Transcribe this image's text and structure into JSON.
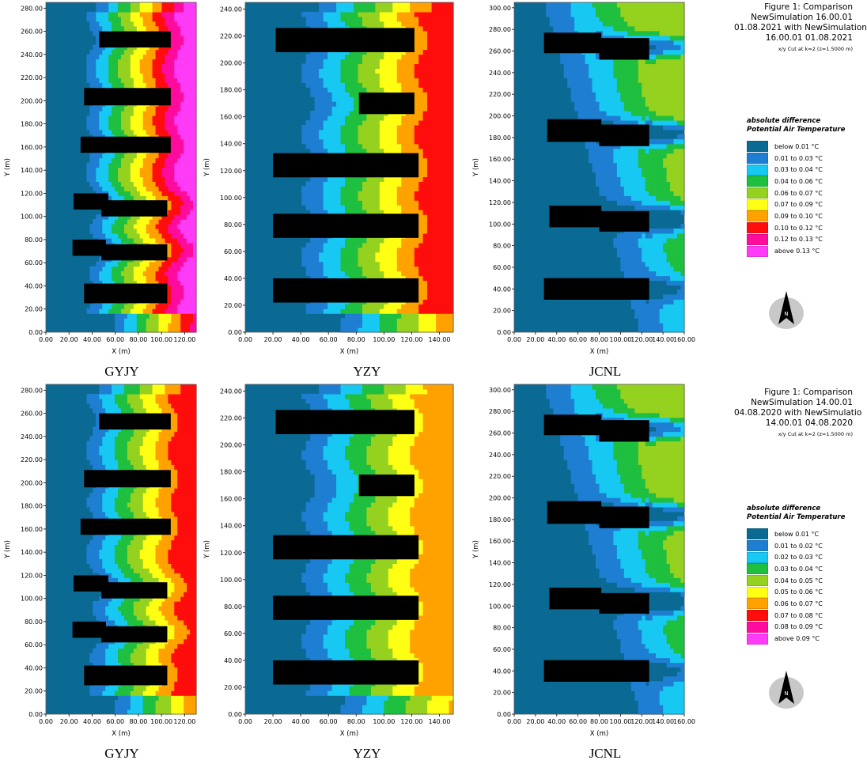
{
  "chart_data": [
    {
      "type": "heatmap",
      "site": "GYJY",
      "row": "top",
      "xlabel": "X (m)",
      "ylabel": "Y (m)",
      "xlim": [
        0,
        130
      ],
      "ylim": [
        0,
        285
      ],
      "xticks": [
        "0.00",
        "20.00",
        "40.00",
        "60.00",
        "80.00",
        "100.00",
        "120.00"
      ],
      "yticks": [
        "0.00",
        "20.00",
        "40.00",
        "60.00",
        "80.00",
        "100.00",
        "120.00",
        "140.00",
        "160.00",
        "180.00",
        "200.00",
        "220.00",
        "240.00",
        "260.00",
        "280.00"
      ],
      "buildings": [
        [
          46,
          246,
          108,
          260
        ],
        [
          33,
          196,
          108,
          211
        ],
        [
          30,
          155,
          108,
          169
        ],
        [
          24,
          106,
          54,
          120
        ],
        [
          48,
          100,
          105,
          114
        ],
        [
          23,
          66,
          52,
          80
        ],
        [
          48,
          62,
          105,
          76
        ],
        [
          33,
          25,
          105,
          42
        ]
      ],
      "hot_edge": "right",
      "peak_class": 9
    },
    {
      "type": "heatmap",
      "site": "YZY",
      "row": "top",
      "xlabel": "X (m)",
      "ylabel": "Y (m)",
      "xlim": [
        0,
        150
      ],
      "ylim": [
        0,
        245
      ],
      "xticks": [
        "0.00",
        "20.00",
        "40.00",
        "60.00",
        "80.00",
        "100.00",
        "120.00",
        "140.00"
      ],
      "yticks": [
        "0.00",
        "20.00",
        "40.00",
        "60.00",
        "80.00",
        "100.00",
        "120.00",
        "140.00",
        "160.00",
        "180.00",
        "200.00",
        "220.00",
        "240.00"
      ],
      "buildings": [
        [
          22,
          208,
          122,
          226
        ],
        [
          82,
          162,
          122,
          178
        ],
        [
          20,
          115,
          125,
          133
        ],
        [
          20,
          70,
          125,
          88
        ],
        [
          20,
          22,
          125,
          40
        ]
      ],
      "hot_edge": "right",
      "peak_class": 7
    },
    {
      "type": "heatmap",
      "site": "JCNL",
      "row": "top",
      "xlabel": "X (m)",
      "ylabel": "Y (m)",
      "xlim": [
        0,
        160
      ],
      "ylim": [
        0,
        305
      ],
      "xticks": [
        "0.00",
        "20.00",
        "40.00",
        "60.00",
        "80.00",
        "100.00",
        "120.00",
        "140.00",
        "160.00"
      ],
      "yticks": [
        "0.00",
        "20.00",
        "40.00",
        "60.00",
        "80.00",
        "100.00",
        "120.00",
        "140.00",
        "160.00",
        "180.00",
        "200.00",
        "220.00",
        "240.00",
        "260.00",
        "280.00",
        "300.00"
      ],
      "buildings": [
        [
          28,
          258,
          82,
          277
        ],
        [
          80,
          252,
          127,
          272
        ],
        [
          31,
          176,
          82,
          197
        ],
        [
          80,
          172,
          127,
          192
        ],
        [
          33,
          97,
          82,
          117
        ],
        [
          80,
          93,
          127,
          112
        ],
        [
          28,
          30,
          127,
          50
        ]
      ],
      "hot_edge": "top-right",
      "peak_class": 4
    },
    {
      "type": "heatmap",
      "site": "GYJY",
      "row": "bottom",
      "xlabel": "X (m)",
      "ylabel": "Y (m)",
      "xlim": [
        0,
        130
      ],
      "ylim": [
        0,
        285
      ],
      "xticks": [
        "0.00",
        "20.00",
        "40.00",
        "60.00",
        "80.00",
        "100.00",
        "120.00"
      ],
      "yticks": [
        "0.00",
        "20.00",
        "40.00",
        "60.00",
        "80.00",
        "100.00",
        "120.00",
        "140.00",
        "160.00",
        "180.00",
        "200.00",
        "220.00",
        "240.00",
        "260.00",
        "280.00"
      ],
      "buildings": [
        [
          46,
          246,
          108,
          260
        ],
        [
          33,
          196,
          108,
          211
        ],
        [
          30,
          155,
          108,
          169
        ],
        [
          24,
          106,
          54,
          120
        ],
        [
          48,
          100,
          105,
          114
        ],
        [
          23,
          66,
          52,
          80
        ],
        [
          48,
          62,
          105,
          76
        ],
        [
          33,
          25,
          105,
          42
        ]
      ],
      "hot_edge": "right",
      "peak_class": 7
    },
    {
      "type": "heatmap",
      "site": "YZY",
      "row": "bottom",
      "xlabel": "X (m)",
      "ylabel": "Y (m)",
      "xlim": [
        0,
        150
      ],
      "ylim": [
        0,
        245
      ],
      "xticks": [
        "0.00",
        "20.00",
        "40.00",
        "60.00",
        "80.00",
        "100.00",
        "120.00",
        "140.00"
      ],
      "yticks": [
        "0.00",
        "20.00",
        "40.00",
        "60.00",
        "80.00",
        "100.00",
        "120.00",
        "140.00",
        "160.00",
        "180.00",
        "200.00",
        "220.00",
        "240.00"
      ],
      "buildings": [
        [
          22,
          208,
          122,
          226
        ],
        [
          82,
          162,
          122,
          178
        ],
        [
          20,
          115,
          125,
          133
        ],
        [
          20,
          70,
          125,
          88
        ],
        [
          20,
          22,
          125,
          40
        ]
      ],
      "hot_edge": "right",
      "peak_class": 6
    },
    {
      "type": "heatmap",
      "site": "JCNL",
      "row": "bottom",
      "xlabel": "X (m)",
      "ylabel": "Y (m)",
      "xlim": [
        0,
        160
      ],
      "ylim": [
        0,
        305
      ],
      "xticks": [
        "0.00",
        "20.00",
        "40.00",
        "60.00",
        "80.00",
        "100.00",
        "120.00",
        "140.00",
        "160.00"
      ],
      "yticks": [
        "0.00",
        "20.00",
        "40.00",
        "60.00",
        "80.00",
        "100.00",
        "120.00",
        "140.00",
        "160.00",
        "180.00",
        "200.00",
        "220.00",
        "240.00",
        "260.00",
        "280.00",
        "300.00"
      ],
      "buildings": [
        [
          28,
          258,
          82,
          277
        ],
        [
          80,
          252,
          127,
          272
        ],
        [
          31,
          176,
          82,
          197
        ],
        [
          80,
          172,
          127,
          192
        ],
        [
          33,
          97,
          82,
          117
        ],
        [
          80,
          93,
          127,
          112
        ],
        [
          28,
          30,
          127,
          50
        ]
      ],
      "hot_edge": "top-right",
      "peak_class": 4
    }
  ],
  "legends": [
    {
      "figure_title": [
        "Figure 1: Comparison",
        "NewSimulation 16.00.01",
        "01.08.2021 with NewSimulation",
        "16.00.01 01.08.2021"
      ],
      "cut_note": "x/y Cut at k=2 (z=1.5000 m)",
      "title": "absolute difference Potential Air Temperature",
      "items": [
        "below 0.01 °C",
        "0.01 to 0.03 °C",
        "0.03 to 0.04 °C",
        "0.04 to 0.06 °C",
        "0.06 to 0.07 °C",
        "0.07 to 0.09 °C",
        "0.09 to 0.10 °C",
        "0.10 to 0.12 °C",
        "0.12 to 0.13 °C",
        "above 0.13 °C"
      ]
    },
    {
      "figure_title": [
        "Figure 1: Comparison",
        "NewSimulation 14.00.01",
        "04.08.2020 with NewSimulatio",
        "14.00.01 04.08.2020"
      ],
      "cut_note": "x/y Cut at k=2 (z=1.5000 m)",
      "title": "absolute difference Potential Air Temperature",
      "items": [
        "below 0.01 °C",
        "0.01 to 0.02 °C",
        "0.02 to 0.03 °C",
        "0.03 to 0.04 °C",
        "0.04 to 0.05 °C",
        "0.05 to 0.06 °C",
        "0.06 to 0.07 °C",
        "0.07 to 0.08 °C",
        "0.08 to 0.09 °C",
        "above 0.09 °C"
      ]
    }
  ],
  "palette": [
    "#0a6a94",
    "#1e7fd2",
    "#16c8f2",
    "#1fbf3f",
    "#95d11f",
    "#ffff14",
    "#ffa200",
    "#ff0d0d",
    "#ff0b9e",
    "#ff3bf7"
  ],
  "compass_label": "N"
}
